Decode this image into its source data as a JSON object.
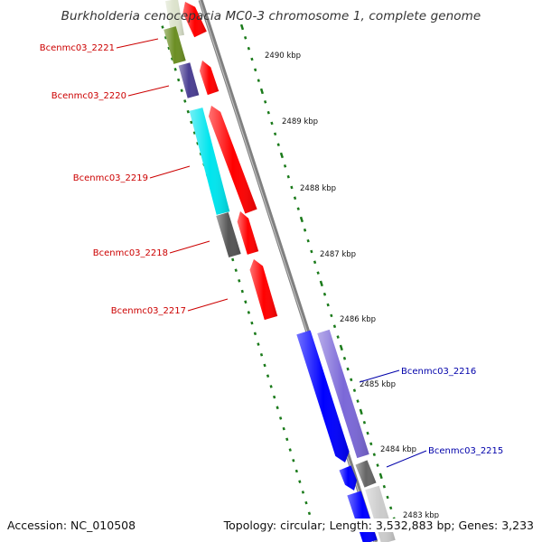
{
  "title": "Burkholderia cenocepacia MC0-3 chromosome 1, complete genome",
  "colors": {
    "background": "#ffffff",
    "backbone": "#808080",
    "kbp_ticks": "#1a7a1a",
    "forward_cds": "#ff0000",
    "gene_label_left": "#cc0000",
    "gene_label_right": "#0000aa",
    "blue_cds": "#0000ff",
    "lavender_cds": "#7b68d8",
    "cyan_cds": "#00e5ee",
    "olive_cds": "#6b8e23",
    "gray_cds": "#555555"
  },
  "kbp_ticks": [
    "2490 kbp",
    "2489 kbp",
    "2488 kbp",
    "2487 kbp",
    "2486 kbp",
    "2485 kbp",
    "2484 kbp",
    "2483 kbp"
  ],
  "gene_labels": [
    "Bcenmc03_2221",
    "Bcenmc03_2220",
    "Bcenmc03_2219",
    "Bcenmc03_2218",
    "Bcenmc03_2217",
    "Bcenmc03_2216",
    "Bcenmc03_2215"
  ],
  "footer": {
    "accession": "Accession: NC_010508",
    "summary": "Topology: circular; Length: 3,532,883 bp; Genes: 3,233"
  }
}
